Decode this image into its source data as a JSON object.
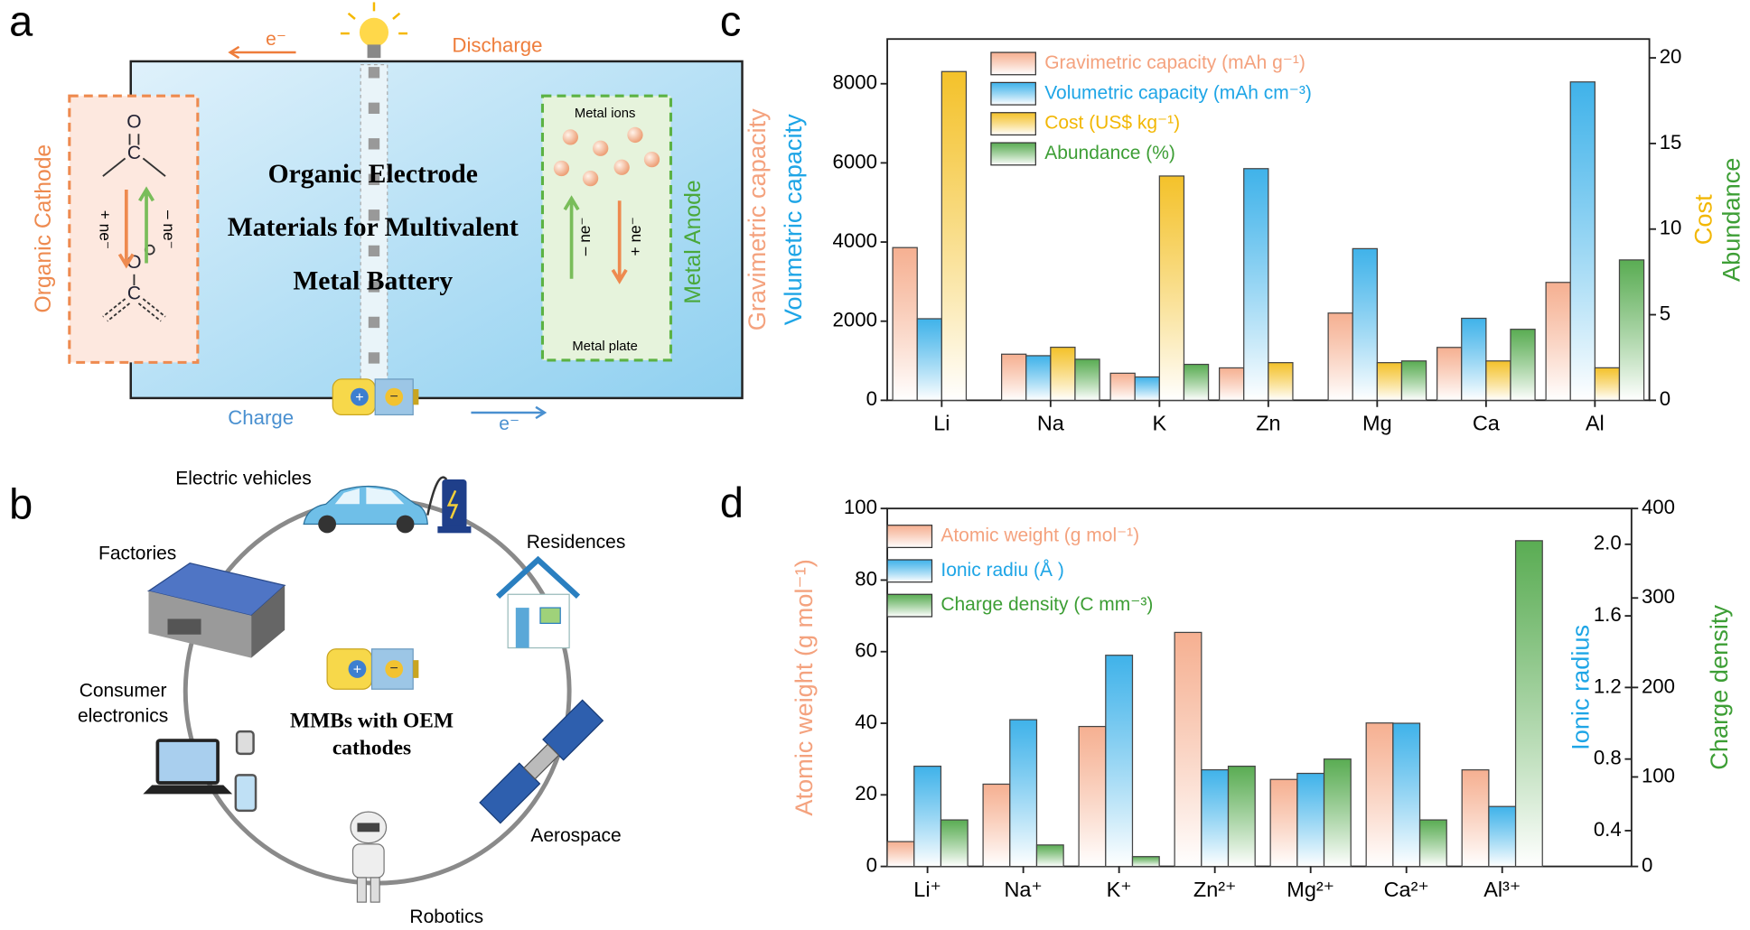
{
  "panel_a": {
    "label": "a",
    "electron_top": "e⁻",
    "discharge": "Discharge",
    "charge": "Charge",
    "electron_bottom": "e⁻",
    "cathode": "Organic Cathode",
    "anode": "Metal Anode",
    "title_lines": [
      "Organic Electrode",
      "Materials for Multivalent",
      "Metal Battery"
    ],
    "metal_ions": "Metal ions",
    "metal_plate": "Metal plate",
    "cathode_reduce": "+ ne⁻",
    "cathode_oxidize": "– ne⁻",
    "anode_oxidize": "– ne⁻",
    "anode_reduce": "+ ne⁻",
    "oxygen": "O",
    "carbon": "C"
  },
  "panel_b": {
    "label": "b",
    "center_lines": [
      "MMBs with OEM",
      "cathodes"
    ],
    "electric_vehicles": "Electric vehicles",
    "residences": "Residences",
    "factories": "Factories",
    "consumer_electronics": [
      "Consumer",
      "electronics"
    ],
    "aerospace": "Aerospace",
    "robotics": "Robotics"
  },
  "chart_data": [
    {
      "type": "bar",
      "panel_label": "c",
      "categories": [
        "Li",
        "Na",
        "K",
        "Zn",
        "Mg",
        "Ca",
        "Al"
      ],
      "ylabels": [
        {
          "text": "Gravimetric capacity",
          "color": "#f4a27e"
        },
        {
          "text": "Volumetric capacity",
          "color": "#1ea5e6"
        }
      ],
      "y2labels": [
        {
          "text": "Cost",
          "color": "#f2b705"
        },
        {
          "text": "Abundance",
          "color": "#3d9e35"
        }
      ],
      "ylim": [
        0,
        9130
      ],
      "yticks": [
        0,
        2000,
        4000,
        6000,
        8000
      ],
      "y2lim": [
        0,
        21.1
      ],
      "y2ticks": [
        0,
        5,
        10,
        15,
        20
      ],
      "series": [
        {
          "name": "Gravimetric capacity (mAh g⁻¹)",
          "color": "#f4a27e",
          "axis": "y",
          "values": [
            3860,
            1166,
            685,
            820,
            2205,
            1337,
            2980
          ]
        },
        {
          "name": "Volumetric capacity (mAh cm⁻³)",
          "color": "#1ea5e6",
          "axis": "y",
          "values": [
            2062,
            1128,
            591,
            5855,
            3833,
            2073,
            8046
          ]
        },
        {
          "name": "Cost (US$ kg⁻¹)",
          "color": "#f2b705",
          "axis": "y2",
          "values": [
            19.2,
            3.1,
            13.1,
            2.2,
            2.2,
            2.3,
            1.9
          ]
        },
        {
          "name": "Abundance (%)",
          "color": "#3d9e35",
          "axis": "y2",
          "values": [
            null,
            2.4,
            2.1,
            null,
            2.3,
            4.15,
            8.2
          ]
        }
      ]
    },
    {
      "type": "bar",
      "panel_label": "d",
      "categories": [
        "Li⁺",
        "Na⁺",
        "K⁺",
        "Zn²⁺",
        "Mg²⁺",
        "Ca²⁺",
        "Al³⁺"
      ],
      "ylabels": [
        {
          "text": "Atomic weight (g mol⁻¹)",
          "color": "#f4a27e"
        }
      ],
      "y2labels": [
        {
          "text": "Ionic radius",
          "color": "#1ea5e6"
        }
      ],
      "y3labels": [
        {
          "text": "Charge density",
          "color": "#3d9e35"
        }
      ],
      "ylim": [
        0,
        100
      ],
      "yticks": [
        0,
        20,
        40,
        60,
        80,
        100
      ],
      "y2lim": [
        0.2,
        2.2
      ],
      "y2ticks": [
        0.4,
        0.8,
        1.2,
        1.6,
        {
          "value": 2,
          "label": "2.0"
        }
      ],
      "y3lim": [
        0,
        400
      ],
      "y3ticks": [
        0,
        100,
        200,
        300,
        400
      ],
      "series": [
        {
          "name": "Atomic weight (g mol⁻¹)",
          "color": "#f4a27e",
          "axis": "y",
          "values": [
            6.94,
            22.99,
            39.1,
            65.38,
            24.31,
            40.08,
            26.98
          ]
        },
        {
          "name": "Ionic radiu (Å )",
          "color": "#1ea5e6",
          "axis": "y2",
          "values": [
            0.76,
            1.02,
            1.38,
            0.74,
            0.72,
            1.0,
            0.535
          ]
        },
        {
          "name": "Charge density (C mm⁻³)",
          "color": "#3d9e35",
          "axis": "y3",
          "values": [
            52,
            24,
            11,
            112,
            120,
            52,
            364
          ]
        }
      ]
    }
  ]
}
